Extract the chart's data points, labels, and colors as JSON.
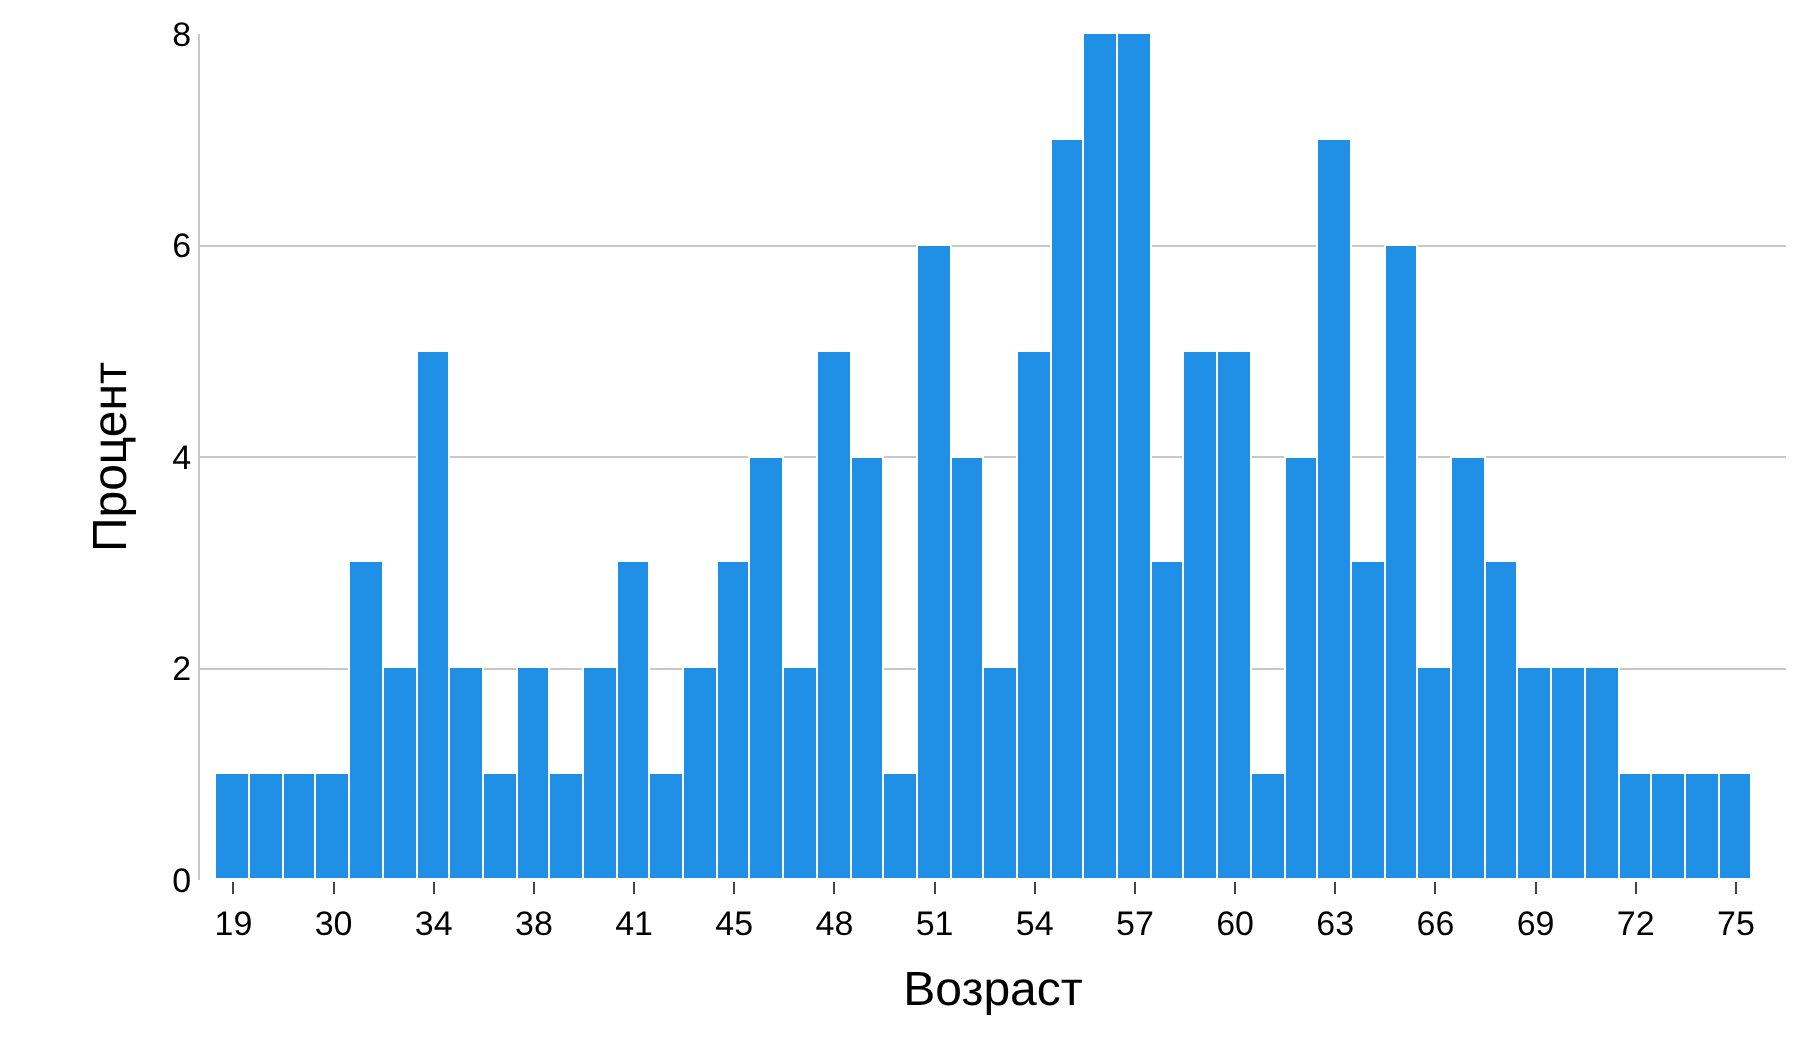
{
  "chart_data": {
    "type": "bar",
    "xlabel": "Возраст",
    "ylabel": "Процент",
    "categories": [
      "19",
      null,
      null,
      "30",
      null,
      null,
      "34",
      null,
      null,
      "38",
      null,
      null,
      "41",
      null,
      null,
      "45",
      null,
      null,
      "48",
      null,
      null,
      "51",
      null,
      null,
      "54",
      null,
      null,
      "57",
      null,
      null,
      "60",
      null,
      null,
      "63",
      null,
      null,
      "66",
      null,
      null,
      "69",
      null,
      null,
      "72",
      null,
      null,
      "75"
    ],
    "values": [
      1,
      1,
      1,
      1,
      3,
      2,
      5,
      2,
      1,
      2,
      1,
      2,
      3,
      1,
      2,
      3,
      4,
      2,
      5,
      4,
      1,
      6,
      4,
      2,
      5,
      7,
      8,
      8,
      3,
      5,
      5,
      1,
      4,
      7,
      3,
      6,
      2,
      4,
      3,
      2,
      2,
      2,
      1,
      1,
      1,
      1
    ],
    "color": "#1f90e6",
    "ylim": [
      0,
      8
    ],
    "yticks": [
      0,
      2,
      4,
      6,
      8
    ],
    "grid": "y",
    "legend": false
  }
}
